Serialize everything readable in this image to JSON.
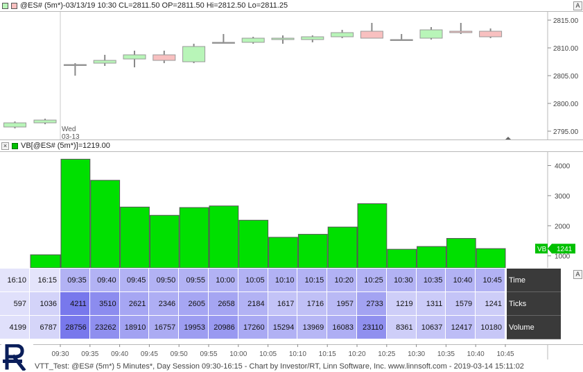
{
  "price_pane": {
    "header_text": "@ES# (5m*)-03/13/19 10:30 CL=2811.50 OP=2811.50 Hi=2812.50 Lo=2811.25",
    "day_label_weekday": "Wed",
    "day_label_date": "03-13",
    "button_label": "A"
  },
  "volume_pane": {
    "header_text": "VB[@ES# (5m*)]=1219.00",
    "tag_label": "VB",
    "tag_value": "1241",
    "button_label": "A"
  },
  "table": {
    "row_labels": [
      "Time",
      "Ticks",
      "Volume"
    ],
    "times": [
      "16:10",
      "16:15",
      "09:35",
      "09:40",
      "09:45",
      "09:50",
      "09:55",
      "10:00",
      "10:05",
      "10:10",
      "10:15",
      "10:20",
      "10:25",
      "10:30",
      "10:35",
      "10:40",
      "10:45"
    ],
    "ticks": [
      "597",
      "1036",
      "4211",
      "3510",
      "2621",
      "2346",
      "2605",
      "2658",
      "2184",
      "1617",
      "1716",
      "1957",
      "2733",
      "1219",
      "1311",
      "1579",
      "1241"
    ],
    "volume": [
      "4199",
      "6787",
      "28756",
      "23262",
      "18910",
      "16757",
      "19953",
      "20986",
      "17260",
      "15294",
      "13969",
      "16083",
      "23110",
      "8361",
      "10637",
      "12417",
      "10180"
    ]
  },
  "footer": {
    "text": "VTT_Test: @ES# (5m*) 5 Minutes*, Day Session 09:30-16:15 - Chart by Investor/RT, Linn Software, Inc. www.linnsoft.com - 2019-03-14 15:11:02"
  },
  "colors": {
    "up_candle": "#b8f5b8",
    "down_candle": "#f8c0c0",
    "volume_bar": "#00e000",
    "table_light": "#dcdcfa",
    "table_dark": "#9a9af0",
    "row_label_bg": "#3a3a3a"
  },
  "chart_data": [
    {
      "type": "candlestick",
      "title": "@ES# (5m*)-03/13/19 10:30 CL=2811.50 OP=2811.50 Hi=2812.50 Lo=2811.25",
      "ylim": [
        2793.5,
        2816.5
      ],
      "y_ticks": [
        2795.0,
        2800.0,
        2805.0,
        2810.0,
        2815.0
      ],
      "categories": [
        "16:10",
        "16:15",
        "09:35",
        "09:40",
        "09:45",
        "09:50",
        "09:55",
        "10:00",
        "10:05",
        "10:10",
        "10:15",
        "10:20",
        "10:25",
        "10:30",
        "10:35",
        "10:40",
        "10:45"
      ],
      "open": [
        2795.75,
        2796.5,
        2807.0,
        2807.25,
        2808.0,
        2808.75,
        2807.5,
        2811.0,
        2811.0,
        2811.5,
        2811.5,
        2812.0,
        2813.0,
        2811.5,
        2811.75,
        2813.0,
        2813.0
      ],
      "high": [
        2796.75,
        2797.25,
        2807.25,
        2808.75,
        2809.5,
        2809.5,
        2810.75,
        2812.5,
        2812.0,
        2812.25,
        2812.25,
        2813.25,
        2814.5,
        2812.5,
        2813.75,
        2814.5,
        2813.5
      ],
      "low": [
        2795.5,
        2796.25,
        2805.0,
        2806.75,
        2806.5,
        2807.25,
        2807.25,
        2810.75,
        2810.75,
        2810.75,
        2811.0,
        2811.75,
        2811.75,
        2811.25,
        2811.5,
        2812.5,
        2811.75
      ],
      "close": [
        2796.5,
        2797.0,
        2807.0,
        2807.75,
        2808.75,
        2807.75,
        2810.25,
        2811.0,
        2811.75,
        2811.75,
        2812.0,
        2812.75,
        2811.75,
        2811.5,
        2813.25,
        2812.75,
        2812.0
      ]
    },
    {
      "type": "bar",
      "title": "VB[@ES# (5m*)]=1219.00",
      "ylim": [
        600,
        4450
      ],
      "y_ticks": [
        1000,
        2000,
        3000,
        4000
      ],
      "categories": [
        "16:10",
        "16:15",
        "09:35",
        "09:40",
        "09:45",
        "09:50",
        "09:55",
        "10:00",
        "10:05",
        "10:10",
        "10:15",
        "10:20",
        "10:25",
        "10:30",
        "10:35",
        "10:40",
        "10:45"
      ],
      "values": [
        597,
        1036,
        4211,
        3510,
        2621,
        2346,
        2605,
        2658,
        2184,
        1617,
        1716,
        1957,
        2733,
        1219,
        1311,
        1579,
        1241
      ],
      "last_value_label": "1241"
    },
    {
      "type": "table",
      "columns": [
        "16:10",
        "16:15",
        "09:35",
        "09:40",
        "09:45",
        "09:50",
        "09:55",
        "10:00",
        "10:05",
        "10:10",
        "10:15",
        "10:20",
        "10:25",
        "10:30",
        "10:35",
        "10:40",
        "10:45"
      ],
      "rows": [
        {
          "name": "Ticks",
          "values": [
            597,
            1036,
            4211,
            3510,
            2621,
            2346,
            2605,
            2658,
            2184,
            1617,
            1716,
            1957,
            2733,
            1219,
            1311,
            1579,
            1241
          ]
        },
        {
          "name": "Volume",
          "values": [
            4199,
            6787,
            28756,
            23262,
            18910,
            16757,
            19953,
            20986,
            17260,
            15294,
            13969,
            16083,
            23110,
            8361,
            10637,
            12417,
            10180
          ]
        }
      ]
    },
    {
      "type": "axis",
      "x_tick_labels": [
        "09:30",
        "09:35",
        "09:40",
        "09:45",
        "09:50",
        "09:55",
        "10:00",
        "10:05",
        "10:10",
        "10:15",
        "10:20",
        "10:25",
        "10:30",
        "10:35",
        "10:40",
        "10:45"
      ]
    }
  ]
}
